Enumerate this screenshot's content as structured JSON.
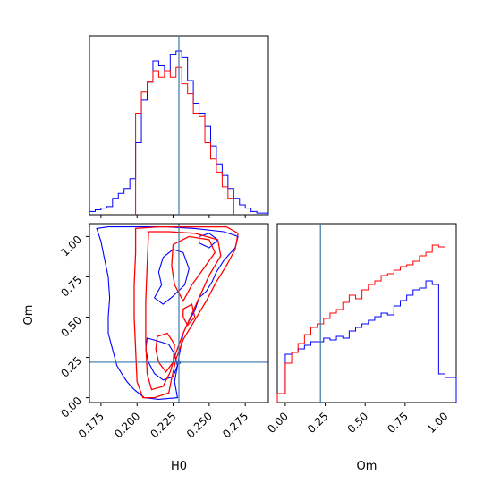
{
  "chart_data": [
    {
      "type": "histogram",
      "panel": "H0 marginal",
      "x_range": [
        0.167,
        0.291
      ],
      "x_ticks": [
        "0.175",
        "0.200",
        "0.225",
        "0.250",
        "0.275"
      ],
      "truth_line": 0.229,
      "series": [
        {
          "color": "#0000ff",
          "bins": [
            0.167,
            0.171,
            0.175,
            0.179,
            0.183,
            0.187,
            0.191,
            0.195,
            0.199,
            0.203,
            0.207,
            0.211,
            0.215,
            0.219,
            0.223,
            0.227,
            0.231,
            0.235,
            0.239,
            0.243,
            0.247,
            0.251,
            0.255,
            0.259,
            0.263,
            0.267,
            0.271,
            0.275,
            0.279,
            0.283,
            0.287,
            0.291
          ],
          "heights": [
            0.02,
            0.03,
            0.04,
            0.05,
            0.1,
            0.13,
            0.16,
            0.22,
            0.44,
            0.7,
            0.81,
            0.94,
            0.91,
            0.88,
            0.98,
            1.0,
            0.96,
            0.82,
            0.68,
            0.62,
            0.54,
            0.42,
            0.31,
            0.24,
            0.16,
            0.1,
            0.06,
            0.04,
            0.02,
            0.01,
            0.01
          ]
        },
        {
          "color": "#ff0000",
          "bins": [
            0.199,
            0.203,
            0.207,
            0.211,
            0.215,
            0.219,
            0.223,
            0.227,
            0.231,
            0.235,
            0.239,
            0.243,
            0.247,
            0.251,
            0.255,
            0.259,
            0.263,
            0.267
          ],
          "heights": [
            0.62,
            0.75,
            0.81,
            0.88,
            0.84,
            0.88,
            0.84,
            0.9,
            0.8,
            0.74,
            0.62,
            0.6,
            0.44,
            0.34,
            0.26,
            0.17,
            0.1
          ]
        }
      ]
    },
    {
      "type": "contour",
      "panel": "H0 vs Om joint",
      "x_range": [
        0.167,
        0.291
      ],
      "y_range": [
        -0.03,
        1.08
      ],
      "x_ticks": [
        "0.175",
        "0.200",
        "0.225",
        "0.250",
        "0.275"
      ],
      "y_ticks": [
        "0.00",
        "0.25",
        "0.50",
        "0.75",
        "1.00"
      ],
      "xlabel": "H0",
      "ylabel": "Om",
      "truth": {
        "x": 0.229,
        "y": 0.22
      },
      "contours": [
        {
          "color": "#0000ff",
          "level": "outer",
          "points": [
            [
              0.172,
              1.05
            ],
            [
              0.18,
              1.06
            ],
            [
              0.205,
              1.06
            ],
            [
              0.22,
              1.06
            ],
            [
              0.24,
              1.05
            ],
            [
              0.26,
              1.03
            ],
            [
              0.27,
              1.0
            ],
            [
              0.268,
              0.93
            ],
            [
              0.26,
              0.85
            ],
            [
              0.255,
              0.78
            ],
            [
              0.252,
              0.72
            ],
            [
              0.248,
              0.66
            ],
            [
              0.243,
              0.62
            ],
            [
              0.24,
              0.54
            ],
            [
              0.235,
              0.46
            ],
            [
              0.232,
              0.4
            ],
            [
              0.23,
              0.3
            ],
            [
              0.228,
              0.2
            ],
            [
              0.226,
              0.1
            ],
            [
              0.228,
              0.0
            ],
            [
              0.215,
              -0.01
            ],
            [
              0.205,
              0.0
            ],
            [
              0.198,
              0.05
            ],
            [
              0.193,
              0.1
            ],
            [
              0.19,
              0.14
            ],
            [
              0.186,
              0.2
            ],
            [
              0.183,
              0.3
            ],
            [
              0.18,
              0.4
            ],
            [
              0.18,
              0.5
            ],
            [
              0.181,
              0.62
            ],
            [
              0.18,
              0.75
            ],
            [
              0.177,
              0.88
            ],
            [
              0.175,
              0.97
            ],
            [
              0.172,
              1.05
            ]
          ]
        },
        {
          "color": "#0000ff",
          "level": "inner",
          "points": [
            [
              0.207,
              0.37
            ],
            [
              0.215,
              0.35
            ],
            [
              0.222,
              0.33
            ],
            [
              0.226,
              0.27
            ],
            [
              0.228,
              0.2
            ],
            [
              0.225,
              0.13
            ],
            [
              0.218,
              0.11
            ],
            [
              0.212,
              0.15
            ],
            [
              0.208,
              0.22
            ],
            [
              0.206,
              0.3
            ],
            [
              0.207,
              0.37
            ]
          ]
        },
        {
          "color": "#0000ff",
          "level": "inner",
          "points": [
            [
              0.212,
              0.62
            ],
            [
              0.217,
              0.7
            ],
            [
              0.215,
              0.78
            ],
            [
              0.218,
              0.87
            ],
            [
              0.225,
              0.92
            ],
            [
              0.232,
              0.9
            ],
            [
              0.236,
              0.8
            ],
            [
              0.233,
              0.7
            ],
            [
              0.225,
              0.63
            ],
            [
              0.218,
              0.58
            ],
            [
              0.212,
              0.62
            ]
          ]
        },
        {
          "color": "#0000ff",
          "level": "inner",
          "points": [
            [
              0.243,
              1.0
            ],
            [
              0.25,
              1.02
            ],
            [
              0.256,
              0.98
            ],
            [
              0.25,
              0.93
            ],
            [
              0.243,
              0.96
            ],
            [
              0.243,
              1.0
            ]
          ]
        },
        {
          "color": "#ff0000",
          "level": "outer",
          "points": [
            [
              0.199,
              1.05
            ],
            [
              0.215,
              1.06
            ],
            [
              0.24,
              1.06
            ],
            [
              0.262,
              1.06
            ],
            [
              0.27,
              1.02
            ],
            [
              0.268,
              0.92
            ],
            [
              0.262,
              0.82
            ],
            [
              0.255,
              0.72
            ],
            [
              0.248,
              0.6
            ],
            [
              0.24,
              0.48
            ],
            [
              0.232,
              0.36
            ],
            [
              0.227,
              0.24
            ],
            [
              0.224,
              0.12
            ],
            [
              0.222,
              0.03
            ],
            [
              0.212,
              0.0
            ],
            [
              0.204,
              0.0
            ],
            [
              0.2,
              0.1
            ],
            [
              0.199,
              0.3
            ],
            [
              0.198,
              0.5
            ],
            [
              0.198,
              0.7
            ],
            [
              0.199,
              0.9
            ],
            [
              0.199,
              1.05
            ]
          ]
        },
        {
          "color": "#ff0000",
          "level": "middle",
          "points": [
            [
              0.208,
              1.03
            ],
            [
              0.222,
              1.03
            ],
            [
              0.24,
              1.02
            ],
            [
              0.256,
              0.98
            ],
            [
              0.258,
              0.88
            ],
            [
              0.25,
              0.76
            ],
            [
              0.244,
              0.64
            ],
            [
              0.238,
              0.52
            ],
            [
              0.232,
              0.4
            ],
            [
              0.227,
              0.28
            ],
            [
              0.223,
              0.16
            ],
            [
              0.218,
              0.07
            ],
            [
              0.21,
              0.05
            ],
            [
              0.207,
              0.15
            ],
            [
              0.206,
              0.35
            ],
            [
              0.206,
              0.6
            ],
            [
              0.207,
              0.82
            ],
            [
              0.208,
              1.03
            ]
          ]
        },
        {
          "color": "#ff0000",
          "level": "inner",
          "points": [
            [
              0.225,
              0.95
            ],
            [
              0.236,
              1.0
            ],
            [
              0.25,
              0.98
            ],
            [
              0.254,
              0.9
            ],
            [
              0.246,
              0.8
            ],
            [
              0.238,
              0.7
            ],
            [
              0.232,
              0.6
            ],
            [
              0.226,
              0.7
            ],
            [
              0.224,
              0.82
            ],
            [
              0.225,
              0.95
            ]
          ]
        },
        {
          "color": "#ff0000",
          "level": "inner",
          "points": [
            [
              0.214,
              0.38
            ],
            [
              0.221,
              0.4
            ],
            [
              0.226,
              0.33
            ],
            [
              0.225,
              0.22
            ],
            [
              0.22,
              0.16
            ],
            [
              0.215,
              0.22
            ],
            [
              0.213,
              0.3
            ],
            [
              0.214,
              0.38
            ]
          ]
        },
        {
          "color": "#ff0000",
          "level": "inner",
          "points": [
            [
              0.232,
              0.55
            ],
            [
              0.238,
              0.58
            ],
            [
              0.24,
              0.5
            ],
            [
              0.235,
              0.45
            ],
            [
              0.232,
              0.5
            ],
            [
              0.232,
              0.55
            ]
          ]
        }
      ]
    },
    {
      "type": "histogram",
      "panel": "Om marginal",
      "x_range": [
        -0.05,
        1.07
      ],
      "x_ticks": [
        "0.00",
        "0.25",
        "0.50",
        "0.75",
        "1.00"
      ],
      "xlabel": "Om",
      "truth_line": 0.22,
      "series": [
        {
          "color": "#0000ff",
          "bins": [
            -0.05,
            0.0,
            0.04,
            0.08,
            0.12,
            0.16,
            0.2,
            0.24,
            0.28,
            0.32,
            0.36,
            0.4,
            0.44,
            0.48,
            0.52,
            0.56,
            0.6,
            0.64,
            0.68,
            0.72,
            0.76,
            0.8,
            0.84,
            0.88,
            0.92,
            0.96,
            1.0,
            1.07
          ],
          "heights": [
            0.05,
            0.27,
            0.28,
            0.3,
            0.32,
            0.34,
            0.34,
            0.36,
            0.35,
            0.37,
            0.36,
            0.4,
            0.42,
            0.44,
            0.46,
            0.48,
            0.5,
            0.49,
            0.54,
            0.57,
            0.6,
            0.63,
            0.64,
            0.68,
            0.66,
            0.16,
            0.14
          ]
        },
        {
          "color": "#ff0000",
          "bins": [
            -0.05,
            0.0,
            0.04,
            0.08,
            0.12,
            0.16,
            0.2,
            0.24,
            0.28,
            0.32,
            0.36,
            0.4,
            0.44,
            0.48,
            0.52,
            0.56,
            0.6,
            0.64,
            0.68,
            0.72,
            0.76,
            0.8,
            0.84,
            0.88,
            0.92,
            0.96,
            1.0
          ],
          "heights": [
            0.05,
            0.22,
            0.28,
            0.33,
            0.38,
            0.42,
            0.44,
            0.47,
            0.5,
            0.52,
            0.56,
            0.6,
            0.58,
            0.63,
            0.66,
            0.68,
            0.71,
            0.72,
            0.74,
            0.76,
            0.77,
            0.79,
            0.82,
            0.84,
            0.88,
            0.87
          ]
        }
      ]
    }
  ],
  "colors": {
    "truth": "#3b75af",
    "blue": "#0000ff",
    "red": "#ff0000"
  }
}
